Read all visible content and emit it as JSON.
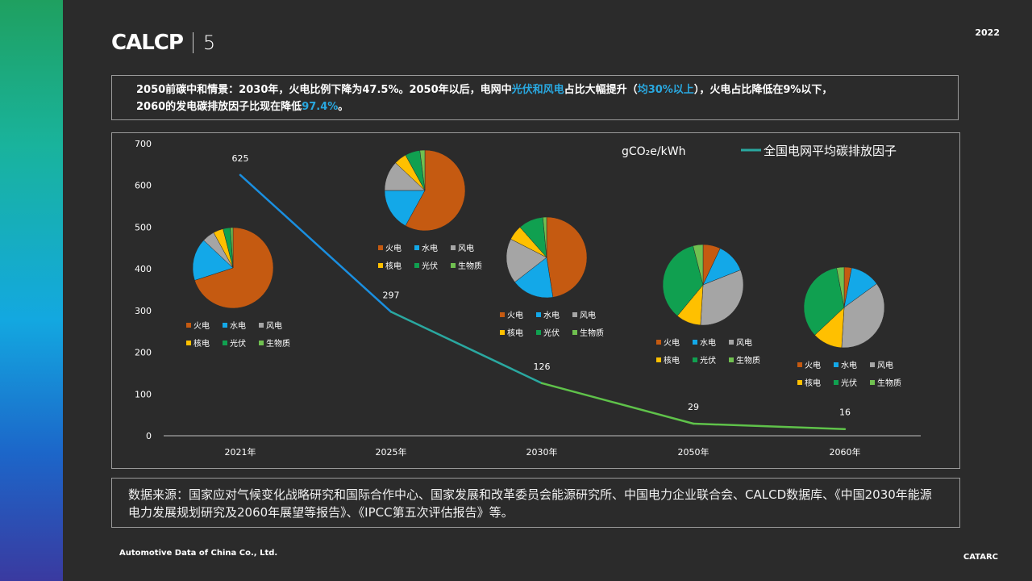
{
  "brand": {
    "logo": "CALCP",
    "logo_number": "5"
  },
  "year": "2022",
  "headline": {
    "line1_a": "2050前碳中和情景：2030年，火电比例下降为47.5%。2050年以后，电网中",
    "line1_hl1": "光伏和风电",
    "line1_b": "占比大幅提升（",
    "line1_hl2": "均30%以上",
    "line1_c": "），火电占比降低在9%以下，",
    "line2_a": "2060的发电碳排放因子比现在降低",
    "line2_hl": "97.4%",
    "line2_b": "。"
  },
  "chart_data": {
    "type": "line",
    "unit_label": "gCO₂e/kWh",
    "categories": [
      "2021年",
      "2025年",
      "2030年",
      "2050年",
      "2060年"
    ],
    "series": [
      {
        "name": "全国电网平均碳排放因子",
        "values": [
          625,
          297,
          126,
          29,
          16
        ]
      }
    ],
    "ylim": [
      0,
      700
    ],
    "yticks": [
      0,
      100,
      200,
      300,
      400,
      500,
      600,
      700
    ],
    "line_colors": [
      "#1a8fe0",
      "#2aa8a0",
      "#5fc24a"
    ],
    "pies": [
      {
        "year": "2021年",
        "values": [
          70,
          17,
          5,
          4,
          3,
          1
        ]
      },
      {
        "year": "2025年",
        "values": [
          58,
          17,
          12,
          5,
          6,
          2
        ]
      },
      {
        "year": "2030年",
        "values": [
          47.5,
          17,
          18,
          6,
          10,
          1.5
        ]
      },
      {
        "year": "2050年",
        "values": [
          7,
          12,
          32,
          10,
          35,
          4
        ]
      },
      {
        "year": "2060年",
        "values": [
          3,
          12,
          36,
          12,
          34,
          3
        ]
      }
    ],
    "pie_categories": [
      "火电",
      "水电",
      "风电",
      "核电",
      "光伏",
      "生物质"
    ],
    "pie_colors": [
      "#c55a11",
      "#13a8e8",
      "#a5a5a5",
      "#ffc000",
      "#10a050",
      "#70c050"
    ]
  },
  "source": {
    "text": "数据来源：国家应对气候变化战略研究和国际合作中心、国家发展和改革委员会能源研究所、中国电力企业联合会、CALCD数据库、《中国2030年能源电力发展规划研究及2060年展望等报告》、《IPCC第五次评估报告》等。"
  },
  "footer": {
    "left": "Automotive Data of China Co., Ltd.",
    "right": "CATARC"
  }
}
